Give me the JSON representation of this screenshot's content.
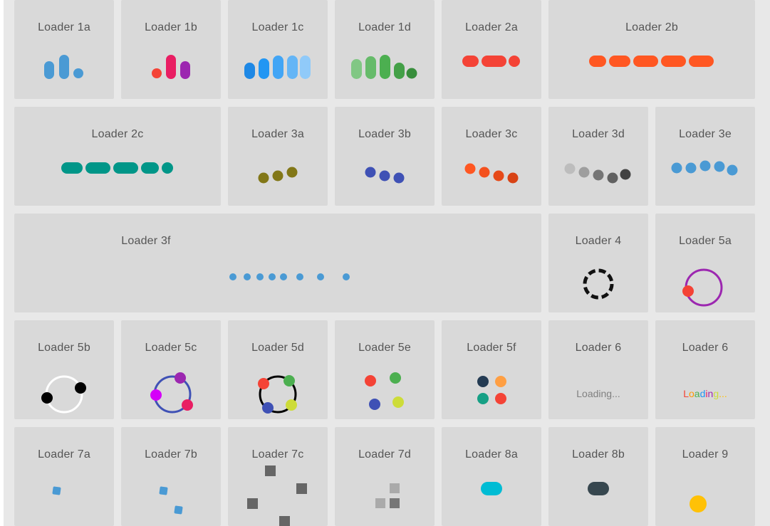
{
  "loaders": {
    "l1a": "Loader 1a",
    "l1b": "Loader 1b",
    "l1c": "Loader 1c",
    "l1d": "Loader 1d",
    "l2a": "Loader 2a",
    "l2b": "Loader 2b",
    "l2c": "Loader 2c",
    "l3a": "Loader 3a",
    "l3b": "Loader 3b",
    "l3c": "Loader 3c",
    "l3d": "Loader 3d",
    "l3e": "Loader 3e",
    "l3f": "Loader 3f",
    "l4": "Loader 4",
    "l5a": "Loader 5a",
    "l5b": "Loader 5b",
    "l5c": "Loader 5c",
    "l5d": "Loader 5d",
    "l5e": "Loader 5e",
    "l5f": "Loader 5f",
    "l6a": "Loader 6",
    "l6b": "Loader 6",
    "l7a": "Loader 7a",
    "l7b": "Loader 7b",
    "l7c": "Loader 7c",
    "l7d": "Loader 7d",
    "l8a": "Loader 8a",
    "l8b": "Loader 8b",
    "l9": "Loader 9"
  },
  "loading_text": "Loading...",
  "rainbow_text": {
    "chars": [
      "L",
      "o",
      "a",
      "d",
      "i",
      "n",
      "g",
      "..."
    ],
    "colors": [
      "#f44336",
      "#ff9800",
      "#4caf50",
      "#2196f3",
      "#e91e63",
      "#9c27b0",
      "#cddc39",
      "#ffc107"
    ]
  },
  "colors": {
    "card_bg": "#d9d9d9",
    "page_bg": "#e8e8e8",
    "blue": "#4a9ad4",
    "teal": "#009688",
    "orange": "#ff5722",
    "red": "#f44336",
    "olive": "#827717",
    "indigo": "#3f51b5",
    "green": "#4caf50",
    "yellow": "#ffc107",
    "cyan": "#00bcd4",
    "dark": "#37474f"
  }
}
